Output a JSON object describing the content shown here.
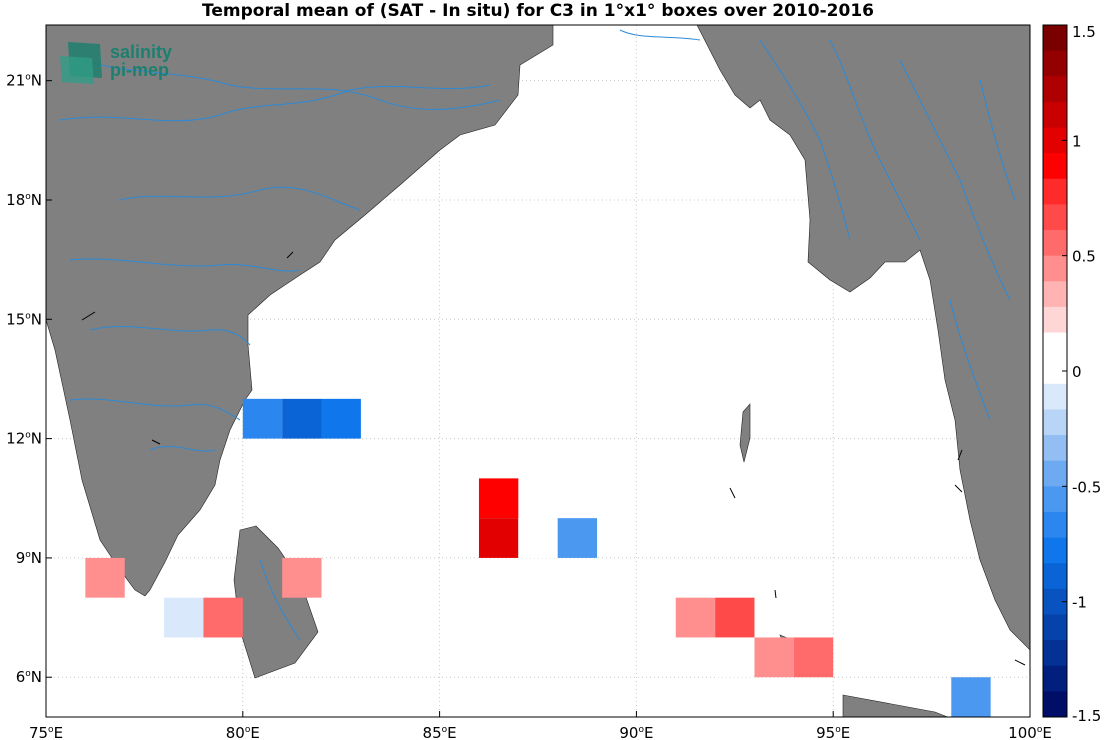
{
  "title": "Temporal mean of (SAT - In situ) for C3 in 1°x1° boxes over 2010-2016",
  "logo": {
    "line1": "salinity",
    "line2": "pi-mep"
  },
  "axes": {
    "lon": [
      {
        "v": 75,
        "text": "75"
      },
      {
        "v": 80,
        "text": "80"
      },
      {
        "v": 85,
        "text": "85"
      },
      {
        "v": 90,
        "text": "90"
      },
      {
        "v": 95,
        "text": "95"
      },
      {
        "v": 100,
        "text": "100"
      }
    ],
    "lon_suffix": "E",
    "lat": [
      {
        "v": 6,
        "text": "6"
      },
      {
        "v": 9,
        "text": "9"
      },
      {
        "v": 12,
        "text": "12"
      },
      {
        "v": 15,
        "text": "15"
      },
      {
        "v": 18,
        "text": "18"
      },
      {
        "v": 21,
        "text": "21"
      }
    ],
    "lat_suffix": "N",
    "degree_symbol": "o",
    "lon_range": [
      75,
      100
    ],
    "lat_range": [
      5,
      22.4
    ]
  },
  "colorbar": {
    "range": [
      -1.5,
      1.5
    ],
    "ticks": [
      {
        "v": 1.5,
        "text": "1.5"
      },
      {
        "v": 1,
        "text": "1"
      },
      {
        "v": 0.5,
        "text": "0.5"
      },
      {
        "v": 0,
        "text": "0"
      },
      {
        "v": -0.5,
        "text": "-0.5"
      },
      {
        "v": -1,
        "text": "-1"
      },
      {
        "v": -1.5,
        "text": "-1.5"
      }
    ],
    "colors_top_to_bottom": [
      "#7a0000",
      "#940000",
      "#ae0000",
      "#c80000",
      "#e20000",
      "#ff0000",
      "#ff2b2b",
      "#ff4a4a",
      "#ff6b6b",
      "#ff8f8f",
      "#ffb3b3",
      "#ffd6d6",
      "#ffffff",
      "#ffffff",
      "#d9e8fb",
      "#b8d4f7",
      "#93bef4",
      "#6eaaf2",
      "#4a98ef",
      "#2b87ef",
      "#0f76ec",
      "#0a64d6",
      "#0853c0",
      "#0542aa",
      "#033194",
      "#01207e",
      "#000e68"
    ]
  },
  "chart_data": {
    "type": "heatmap",
    "title": "Temporal mean of (SAT - In situ) for C3 in 1°x1° boxes over 2010-2016",
    "xlabel": "",
    "ylabel": "",
    "xlim": [
      75,
      100
    ],
    "ylim": [
      5,
      22.4
    ],
    "vlim": [
      -1.5,
      1.5
    ],
    "cell_size_deg": 1,
    "cells": [
      {
        "lon": 80,
        "lat": 12,
        "value": -0.65
      },
      {
        "lon": 81,
        "lat": 12,
        "value": -0.85
      },
      {
        "lon": 82,
        "lat": 12,
        "value": -0.75
      },
      {
        "lon": 86,
        "lat": 10,
        "value": 0.85
      },
      {
        "lon": 86,
        "lat": 9,
        "value": 0.95
      },
      {
        "lon": 87,
        "lat": 9,
        "value": 0.15
      },
      {
        "lon": 88,
        "lat": 9,
        "value": -0.6
      },
      {
        "lon": 76,
        "lat": 8,
        "value": 0.4
      },
      {
        "lon": 81,
        "lat": 8,
        "value": 0.4
      },
      {
        "lon": 78,
        "lat": 7,
        "value": -0.15
      },
      {
        "lon": 79,
        "lat": 7,
        "value": 0.6
      },
      {
        "lon": 82,
        "lat": 7,
        "value": 0.15
      },
      {
        "lon": 91,
        "lat": 7,
        "value": 0.4
      },
      {
        "lon": 92,
        "lat": 7,
        "value": 0.7
      },
      {
        "lon": 92,
        "lat": 6,
        "value": 0.15
      },
      {
        "lon": 93,
        "lat": 6,
        "value": 0.4
      },
      {
        "lon": 94,
        "lat": 6,
        "value": 0.55
      },
      {
        "lon": 98,
        "lat": 5,
        "value": -0.5
      }
    ]
  }
}
